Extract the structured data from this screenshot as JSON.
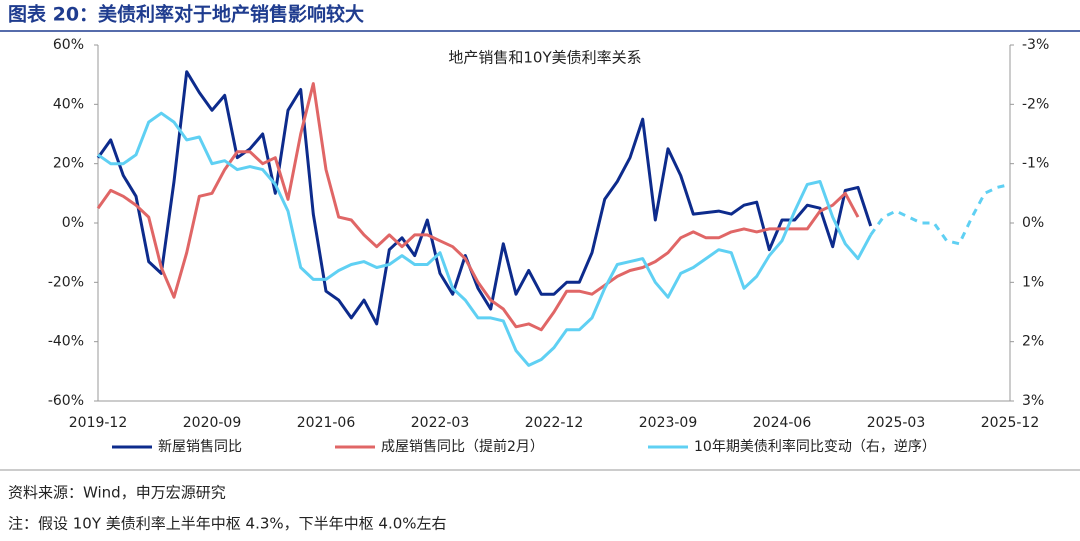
{
  "figure_title": "图表 20：美债利率对于地产销售影响较大",
  "source": "资料来源：Wind，申万宏源研究",
  "note": "注：假设 10Y 美债利率上半年中枢 4.3%，下半年中枢 4.0%左右",
  "chart_data": {
    "type": "line",
    "title": "地产销售和10Y美债利率关系",
    "categories": [
      "2019-12",
      null,
      null,
      null,
      null,
      null,
      null,
      null,
      null,
      "2020-09",
      null,
      null,
      null,
      null,
      null,
      null,
      null,
      null,
      "2021-06",
      null,
      null,
      null,
      null,
      null,
      null,
      null,
      null,
      "2022-03",
      null,
      null,
      null,
      null,
      null,
      null,
      null,
      null,
      "2022-12",
      null,
      null,
      null,
      null,
      null,
      null,
      null,
      null,
      "2023-09",
      null,
      null,
      null,
      null,
      null,
      null,
      null,
      null,
      "2024-06",
      null,
      null,
      null,
      null,
      null,
      null,
      null,
      null,
      "2025-03",
      null,
      null,
      null,
      null,
      null,
      null,
      null,
      null,
      "2025-12"
    ],
    "series": [
      {
        "name": "新屋销售同比",
        "color": "#0d2b8c",
        "axis": "y",
        "values": [
          22,
          28,
          16,
          9,
          -13,
          -17,
          14,
          51,
          44,
          38,
          43,
          22,
          25,
          30,
          10,
          38,
          45,
          3,
          -23,
          -26,
          -32,
          -26,
          -34,
          -9,
          -5,
          -11,
          1,
          -17,
          -24,
          -11,
          -22,
          -29,
          -7,
          -24,
          -16,
          -24,
          -24,
          -20,
          -20,
          -10,
          8,
          14,
          22,
          35,
          1,
          25,
          16,
          3,
          3.5,
          4,
          3,
          6,
          7,
          -9,
          1,
          1,
          6,
          5,
          -8,
          11,
          12,
          -1,
          null,
          null,
          null,
          null,
          null,
          null,
          null,
          null,
          null,
          null,
          null
        ]
      },
      {
        "name": "成屋销售同比（提前2月）",
        "color": "#e06666",
        "axis": "y",
        "values": [
          5,
          11,
          9,
          6,
          2,
          -15,
          -25,
          -10,
          9,
          10,
          18,
          24,
          24,
          20,
          22,
          8,
          30,
          47,
          18,
          2,
          1,
          -4,
          -8,
          -4,
          -8,
          -4,
          -4,
          -6,
          -8,
          -12,
          -20,
          -26,
          -29,
          -35,
          -34,
          -36,
          -30,
          -23,
          -23,
          -24,
          -21,
          -18,
          -16,
          -15,
          -13,
          -10,
          -5,
          -3,
          -5,
          -5,
          -3,
          -2,
          -3,
          -2,
          -2,
          -2,
          -2,
          4,
          6,
          10,
          2,
          null,
          null,
          null,
          null,
          null,
          null,
          null,
          null,
          null,
          null,
          null,
          null
        ]
      },
      {
        "name": "10年期美债利率同比变动（右，逆序）",
        "color": "#5fd0f3",
        "axis": "y2",
        "dashed_from": 61,
        "values": [
          -1.15,
          -1.0,
          -1.0,
          -1.15,
          -1.7,
          -1.85,
          -1.7,
          -1.4,
          -1.45,
          -1.0,
          -1.05,
          -0.9,
          -0.95,
          -0.9,
          -0.65,
          -0.2,
          0.75,
          0.95,
          0.95,
          0.8,
          0.7,
          0.65,
          0.75,
          0.7,
          0.55,
          0.7,
          0.7,
          0.5,
          1.1,
          1.3,
          1.6,
          1.6,
          1.65,
          2.15,
          2.4,
          2.3,
          2.1,
          1.8,
          1.8,
          1.6,
          1.1,
          0.7,
          0.65,
          0.6,
          1.0,
          1.25,
          0.85,
          0.75,
          0.6,
          0.45,
          0.5,
          1.1,
          0.9,
          0.55,
          0.3,
          -0.2,
          -0.65,
          -0.7,
          -0.1,
          0.35,
          0.6,
          0.2,
          -0.1,
          -0.2,
          -0.1,
          0.0,
          0.0,
          0.3,
          0.35,
          -0.1,
          -0.5,
          -0.6,
          -0.65
        ]
      }
    ],
    "ylim": [
      -60,
      60
    ],
    "yticks": [
      {
        "value": -60,
        "label": "-60%"
      },
      {
        "value": -40,
        "label": "-40%"
      },
      {
        "value": -20,
        "label": "-20%"
      },
      {
        "value": 0,
        "label": "0%"
      },
      {
        "value": 20,
        "label": "20%"
      },
      {
        "value": 40,
        "label": "40%"
      },
      {
        "value": 60,
        "label": "60%"
      }
    ],
    "y2lim": [
      -3,
      3
    ],
    "y2_reversed": true,
    "y2ticks": [
      {
        "value": -3,
        "label": "-3%"
      },
      {
        "value": -2,
        "label": "-2%"
      },
      {
        "value": -1,
        "label": "-1%"
      },
      {
        "value": 0,
        "label": "0%"
      },
      {
        "value": 1,
        "label": "1%"
      },
      {
        "value": 2,
        "label": "2%"
      },
      {
        "value": 3,
        "label": "3%"
      }
    ],
    "legend": "bottom",
    "grid": false
  }
}
